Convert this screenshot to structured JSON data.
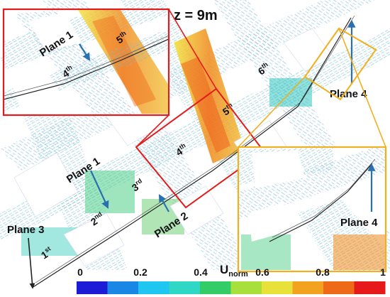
{
  "title": "z = 9m",
  "intersections": [
    "1",
    "2",
    "3",
    "4",
    "5",
    "6"
  ],
  "ordinal_suffixes": [
    "st",
    "nd",
    "rd",
    "th",
    "th",
    "th"
  ],
  "planes": {
    "plane1": "Plane 1",
    "plane2": "Plane 2",
    "plane3": "Plane 3",
    "plane4": "Plane 4"
  },
  "inset_red": {
    "plane_label": "Plane 1",
    "intersections": [
      "4",
      "5"
    ],
    "suffix": "th",
    "frame_color": "#e31b1b"
  },
  "inset_yellow": {
    "plane_label": "Plane 4",
    "frame_color": "#f0b020"
  },
  "colorbar": {
    "label_main": "U",
    "label_sub": "norm",
    "ticks": [
      "0",
      "0.2",
      "0.4",
      "0.6",
      "0.8",
      "1"
    ],
    "colors": [
      "#1c1cd6",
      "#1a86e6",
      "#1fc6f0",
      "#2fd7c5",
      "#33cc66",
      "#a7e03a",
      "#e8e13a",
      "#f2a21e",
      "#ee6a18",
      "#e61a1a"
    ]
  },
  "arrow_color": "#2a6fb0"
}
